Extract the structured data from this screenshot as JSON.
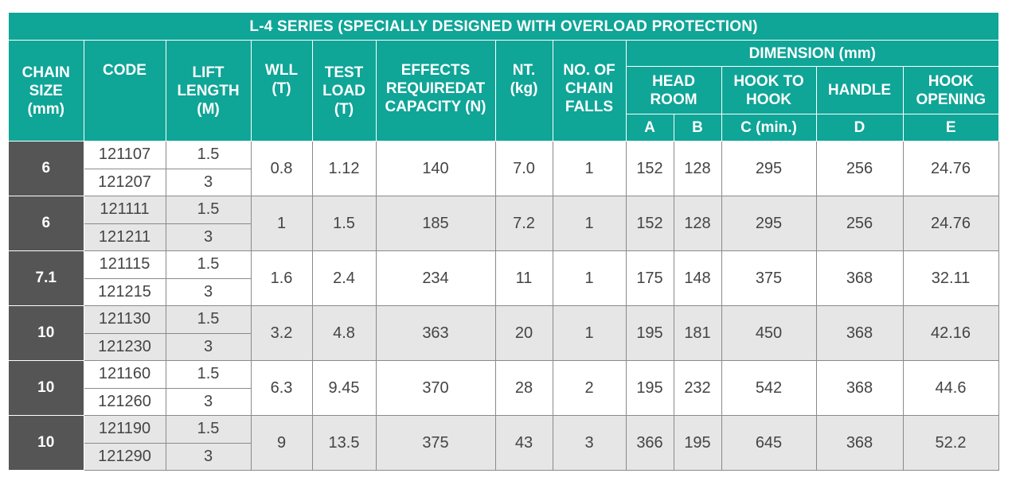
{
  "title": "L-4 SERIES (SPECIALLY DESIGNED WITH OVERLOAD PROTECTION)",
  "headers": {
    "chain_size": [
      "CHAIN",
      "SIZE",
      "(mm)"
    ],
    "code": "CODE",
    "lift_length": [
      "LIFT",
      "LENGTH",
      "(M)"
    ],
    "wll": [
      "WLL",
      "(T)"
    ],
    "test_load": [
      "TEST",
      "LOAD",
      "(T)"
    ],
    "effects": [
      "EFFECTS",
      "REQUIREDAT",
      "CAPACITY (N)"
    ],
    "nt": [
      "NT.",
      "(kg)"
    ],
    "chain_falls": [
      "NO. OF",
      "CHAIN",
      "FALLS"
    ],
    "dimension": "DIMENSION (mm)",
    "head_room": [
      "HEAD",
      "ROOM"
    ],
    "hook_to_hook": [
      "HOOK TO",
      "HOOK"
    ],
    "handle": "HANDLE",
    "hook_opening": [
      "HOOK",
      "OPENING"
    ],
    "col_a": "A",
    "col_b": "B",
    "col_c": "C (min.)",
    "col_d": "D",
    "col_e": "E"
  },
  "rows": [
    {
      "size": "6",
      "codes": [
        "121107",
        "121207"
      ],
      "lifts": [
        "1.5",
        "3"
      ],
      "wll": "0.8",
      "test": "1.12",
      "effects": "140",
      "nt": "7.0",
      "falls": "1",
      "a": "152",
      "b": "128",
      "c": "295",
      "d": "256",
      "e": "24.76"
    },
    {
      "size": "6",
      "codes": [
        "121111",
        "121211"
      ],
      "lifts": [
        "1.5",
        "3"
      ],
      "wll": "1",
      "test": "1.5",
      "effects": "185",
      "nt": "7.2",
      "falls": "1",
      "a": "152",
      "b": "128",
      "c": "295",
      "d": "256",
      "e": "24.76"
    },
    {
      "size": "7.1",
      "codes": [
        "121115",
        "121215"
      ],
      "lifts": [
        "1.5",
        "3"
      ],
      "wll": "1.6",
      "test": "2.4",
      "effects": "234",
      "nt": "11",
      "falls": "1",
      "a": "175",
      "b": "148",
      "c": "375",
      "d": "368",
      "e": "32.11"
    },
    {
      "size": "10",
      "codes": [
        "121130",
        "121230"
      ],
      "lifts": [
        "1.5",
        "3"
      ],
      "wll": "3.2",
      "test": "4.8",
      "effects": "363",
      "nt": "20",
      "falls": "1",
      "a": "195",
      "b": "181",
      "c": "450",
      "d": "368",
      "e": "42.16"
    },
    {
      "size": "10",
      "codes": [
        "121160",
        "121260"
      ],
      "lifts": [
        "1.5",
        "3"
      ],
      "wll": "6.3",
      "test": "9.45",
      "effects": "370",
      "nt": "28",
      "falls": "2",
      "a": "195",
      "b": "232",
      "c": "542",
      "d": "368",
      "e": "44.6"
    },
    {
      "size": "10",
      "codes": [
        "121190",
        "121290"
      ],
      "lifts": [
        "1.5",
        "3"
      ],
      "wll": "9",
      "test": "13.5",
      "effects": "375",
      "nt": "43",
      "falls": "3",
      "a": "366",
      "b": "195",
      "c": "645",
      "d": "368",
      "e": "52.2"
    }
  ],
  "colors": {
    "header_bg": "#0fa597",
    "size_bg": "#555555",
    "row_alt_bg": "#e6e6e6",
    "border": "#8a8a8a"
  }
}
